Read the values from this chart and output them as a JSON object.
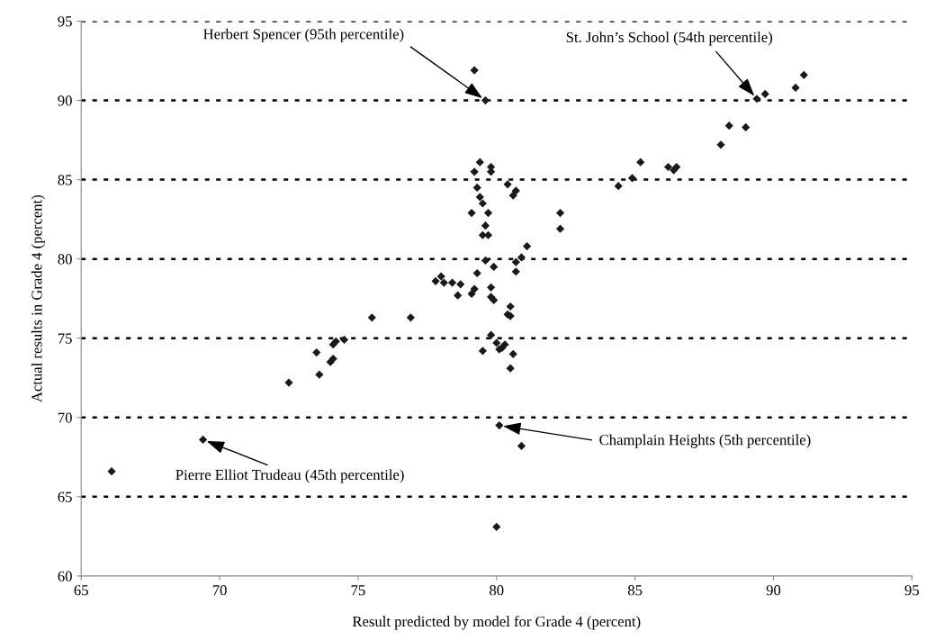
{
  "chart_data": {
    "type": "scatter",
    "xlabel": "Result predicted by model for Grade 4 (percent)",
    "ylabel": "Actual results in Grade 4 (percent)",
    "xlim": [
      65,
      95
    ],
    "xticks": [
      65,
      70,
      75,
      80,
      85,
      90,
      95
    ],
    "ylim": [
      60,
      95
    ],
    "yticks": [
      60,
      65,
      70,
      75,
      80,
      85,
      90,
      95
    ],
    "grid": "y",
    "marker": "diamond",
    "series": [
      {
        "color": "#1a1a1a",
        "x": [
          66.1,
          69.4,
          72.5,
          73.5,
          73.6,
          74.0,
          74.1,
          74.1,
          74.2,
          74.5,
          75.5,
          76.9,
          77.8,
          78.0,
          78.1,
          78.4,
          78.6,
          78.7,
          79.1,
          79.2,
          79.3,
          79.1,
          79.2,
          79.2,
          79.3,
          79.4,
          79.4,
          79.5,
          79.5,
          79.5,
          79.6,
          79.6,
          79.6,
          79.7,
          79.7,
          79.8,
          79.8,
          79.8,
          79.8,
          79.8,
          79.9,
          79.9,
          80.0,
          80.1,
          80.1,
          80.2,
          80.3,
          80.0,
          80.4,
          80.4,
          80.5,
          80.5,
          80.5,
          80.6,
          80.6,
          80.7,
          80.7,
          80.7,
          80.9,
          80.9,
          81.1,
          82.3,
          82.3,
          84.4,
          84.9,
          85.2,
          86.2,
          86.4,
          86.5,
          88.1,
          88.4,
          89.0,
          89.4,
          89.7,
          90.8,
          91.1
        ],
        "values": [
          66.6,
          68.6,
          72.2,
          74.1,
          72.7,
          73.5,
          73.7,
          74.6,
          74.8,
          74.9,
          76.3,
          76.3,
          78.6,
          78.9,
          78.5,
          78.5,
          77.7,
          78.4,
          77.8,
          78.1,
          79.1,
          82.9,
          85.5,
          91.9,
          84.5,
          86.1,
          83.9,
          83.5,
          81.5,
          74.2,
          90.0,
          79.9,
          82.1,
          82.9,
          81.5,
          85.8,
          85.5,
          78.2,
          77.6,
          75.2,
          77.4,
          79.5,
          74.7,
          74.3,
          69.5,
          74.4,
          74.6,
          63.1,
          76.5,
          84.7,
          76.4,
          73.1,
          77.0,
          74.0,
          84.0,
          84.3,
          79.2,
          79.8,
          80.1,
          68.2,
          80.8,
          82.9,
          81.9,
          84.6,
          85.1,
          86.1,
          85.8,
          85.6,
          85.8,
          87.2,
          88.4,
          88.3,
          90.1,
          90.4,
          90.8,
          91.6
        ]
      }
    ],
    "annotations": [
      {
        "text": "Herbert Spencer (95th percentile)",
        "x": 79.6,
        "y": 90.0
      },
      {
        "text": "St. John’s School (54th percentile)",
        "x": 89.4,
        "y": 90.1
      },
      {
        "text": "Champlain Heights (5th percentile)",
        "x": 80.1,
        "y": 69.5
      },
      {
        "text": "Pierre Elliot Trudeau (45th percentile)",
        "x": 69.4,
        "y": 68.6
      }
    ]
  }
}
